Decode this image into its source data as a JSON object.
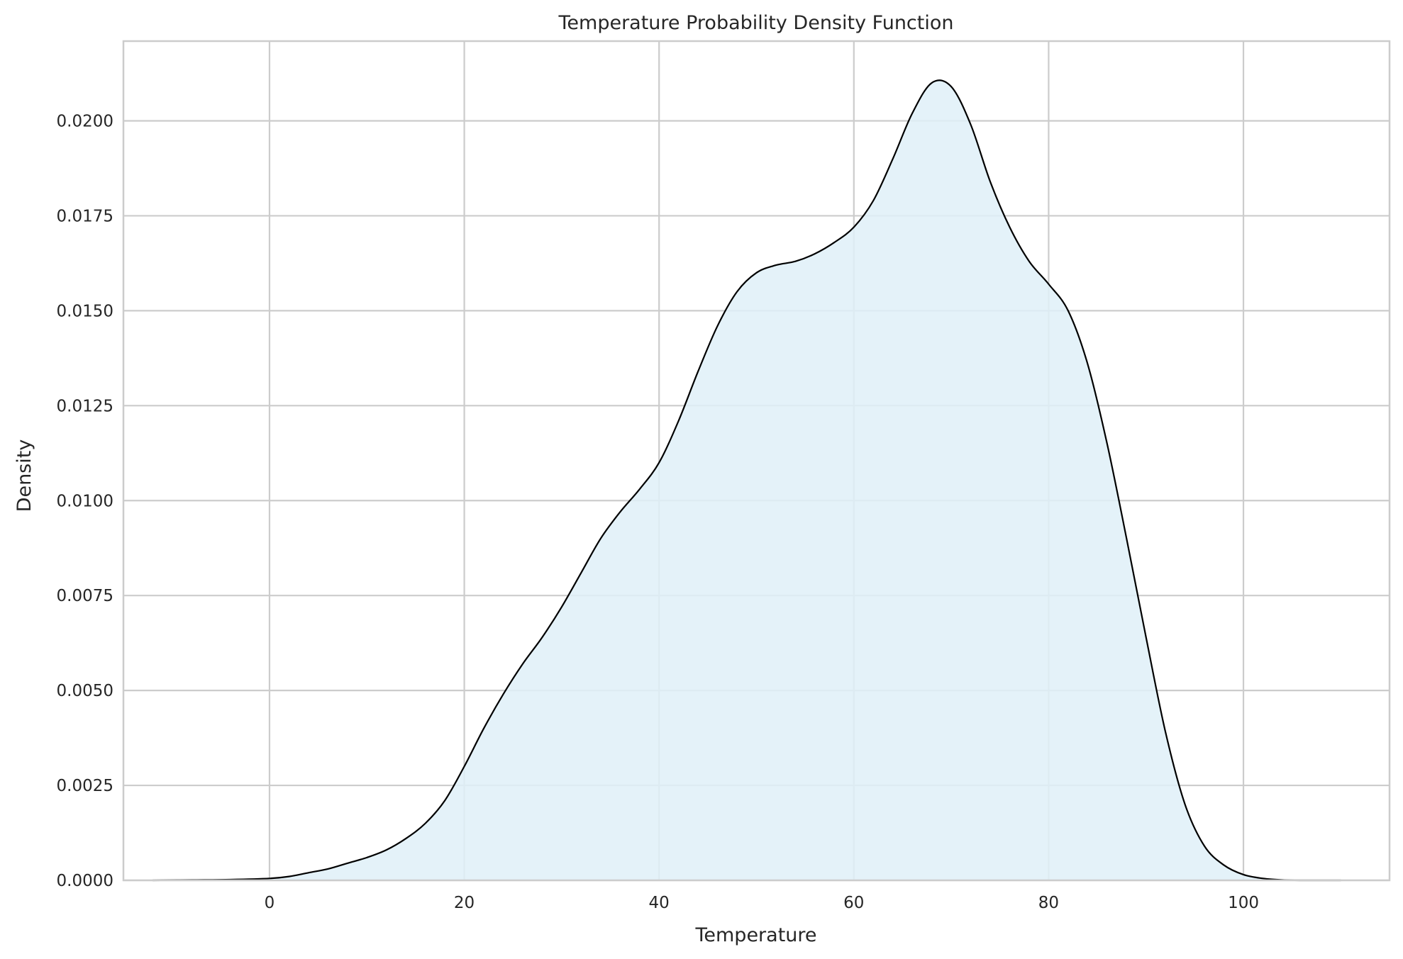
{
  "chart_data": {
    "type": "area",
    "title": "Temperature Probability Density Function",
    "xlabel": "Temperature",
    "ylabel": "Density",
    "xlim": [
      -15,
      115
    ],
    "ylim": [
      0,
      0.0221
    ],
    "xticks": [
      0,
      20,
      40,
      60,
      80,
      100
    ],
    "xtick_labels": [
      "0",
      "20",
      "40",
      "60",
      "80",
      "100"
    ],
    "yticks": [
      0,
      0.0025,
      0.005,
      0.0075,
      0.01,
      0.0125,
      0.015,
      0.0175,
      0.02
    ],
    "ytick_labels": [
      "0.0000",
      "0.0025",
      "0.0050",
      "0.0075",
      "0.0100",
      "0.0125",
      "0.0150",
      "0.0175",
      "0.0200"
    ],
    "grid": true,
    "series": [
      {
        "x": [
          -12,
          -8,
          -4,
          0,
          2,
          4,
          6,
          8,
          10,
          12,
          14,
          16,
          18,
          20,
          22,
          24,
          26,
          28,
          30,
          32,
          34,
          36,
          38,
          40,
          42,
          44,
          46,
          48,
          50,
          52,
          54,
          56,
          58,
          60,
          62,
          64,
          66,
          68,
          70,
          72,
          74,
          76,
          78,
          80,
          82,
          84,
          86,
          88,
          90,
          92,
          94,
          96,
          98,
          100,
          102,
          104,
          106,
          110
        ],
        "y": [
          0.0,
          1e-05,
          2e-05,
          5e-05,
          0.0001,
          0.0002,
          0.0003,
          0.00045,
          0.0006,
          0.0008,
          0.0011,
          0.0015,
          0.0021,
          0.003,
          0.004,
          0.0049,
          0.0057,
          0.0064,
          0.0072,
          0.0081,
          0.009,
          0.0097,
          0.0103,
          0.011,
          0.0121,
          0.0134,
          0.0146,
          0.0155,
          0.016,
          0.0162,
          0.0163,
          0.0165,
          0.0168,
          0.0172,
          0.0179,
          0.019,
          0.0202,
          0.021,
          0.0209,
          0.0199,
          0.0184,
          0.0172,
          0.0163,
          0.0157,
          0.015,
          0.0136,
          0.0115,
          0.009,
          0.0064,
          0.0039,
          0.002,
          0.0009,
          0.0004,
          0.00015,
          5e-05,
          1e-05,
          0.0,
          0.0
        ]
      }
    ],
    "colors": {
      "fill": "#dff0f8",
      "line": "#000000",
      "grid": "#cccccc",
      "frame": "#cccccc"
    }
  }
}
